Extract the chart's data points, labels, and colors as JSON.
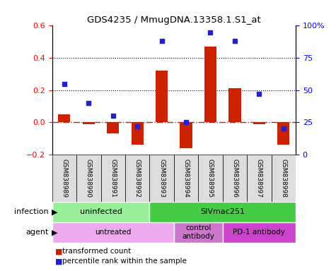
{
  "title": "GDS4235 / MmugDNA.13358.1.S1_at",
  "samples": [
    "GSM838989",
    "GSM838990",
    "GSM838991",
    "GSM838992",
    "GSM838993",
    "GSM838994",
    "GSM838995",
    "GSM838996",
    "GSM838997",
    "GSM838998"
  ],
  "transformed_count": [
    0.05,
    -0.01,
    -0.07,
    -0.14,
    0.32,
    -0.16,
    0.47,
    0.21,
    -0.01,
    -0.14
  ],
  "percentile_rank": [
    55,
    40,
    30,
    22,
    88,
    25,
    95,
    88,
    47,
    20
  ],
  "ylim_left": [
    -0.2,
    0.6
  ],
  "ylim_right": [
    0,
    100
  ],
  "yticks_left": [
    -0.2,
    0.0,
    0.2,
    0.4,
    0.6
  ],
  "yticks_right": [
    0,
    25,
    50,
    75,
    100
  ],
  "yticklabels_right": [
    "0",
    "25",
    "50",
    "75",
    "100%"
  ],
  "hlines": [
    0.2,
    0.4
  ],
  "bar_color": "#cc2200",
  "dot_color": "#2222cc",
  "zero_line_color": "#cc2200",
  "infection_groups": [
    {
      "label": "uninfected",
      "start": 0,
      "end": 4,
      "color": "#99ee99"
    },
    {
      "label": "SIVmac251",
      "start": 4,
      "end": 10,
      "color": "#44cc44"
    }
  ],
  "agent_groups": [
    {
      "label": "untreated",
      "start": 0,
      "end": 5,
      "color": "#eeaaee"
    },
    {
      "label": "control\nantibody",
      "start": 5,
      "end": 7,
      "color": "#cc77cc"
    },
    {
      "label": "PD-1 antibody",
      "start": 7,
      "end": 10,
      "color": "#cc44cc"
    }
  ],
  "legend_items": [
    {
      "label": "transformed count",
      "color": "#cc2200"
    },
    {
      "label": "percentile rank within the sample",
      "color": "#2222cc"
    }
  ],
  "infection_label": "infection",
  "agent_label": "agent",
  "sample_bg_color": "#dddddd",
  "left_label_color": "red",
  "right_label_color": "blue"
}
